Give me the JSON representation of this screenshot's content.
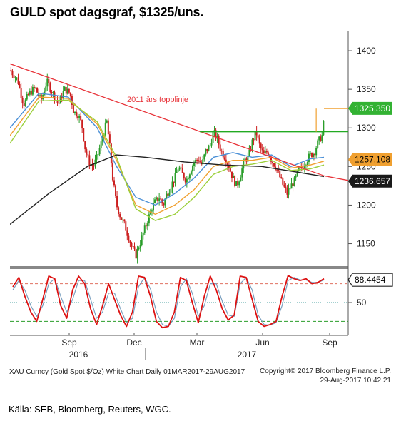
{
  "title": "GULD spot dagsgraf, $1325/uns.",
  "footer": {
    "left": "XAU Curncy (Gold Spot  $/Oz) White Chart  Daily 01MAR2017-29AUG2017",
    "right_1": "Copyright© 2017 Bloomberg Finance L.P.",
    "right_2": "29-Aug-2017 10:42:21"
  },
  "source": "Källa: SEB, Bloomberg, Reuters, WGC.",
  "annotation": "2011 års topplinje",
  "colors": {
    "candle_up": "#2a9d2a",
    "candle_down": "#cc1f1f",
    "trendline": "#e8343a",
    "resistance": "#22aa22",
    "ma_blue": "#4a8fd6",
    "ma_orange": "#f0a030",
    "ma_green": "#9bcf3a",
    "ma_200": "#222222",
    "stoch_k": "#dd1111",
    "stoch_d": "#7a9fbf"
  },
  "chart_data": [
    {
      "type": "candlestick",
      "title": "GULD spot dagsgraf, $1325/uns.",
      "y_ticks": [
        1150,
        1200,
        1250,
        1300,
        1350,
        1400
      ],
      "ylim": [
        1120,
        1425
      ],
      "x_ticks": [
        "Sep",
        "Dec",
        "Mar",
        "Jun",
        "Sep"
      ],
      "year_labels": [
        "2016",
        "2017"
      ],
      "value_tags": [
        {
          "label": "1325.350",
          "value": 1325.35,
          "fill": "#33b233",
          "text_color": "#ffffff"
        },
        {
          "label": "1257.108",
          "value": 1257.108,
          "fill": "#f0a030",
          "text_color": "#000000"
        },
        {
          "label": "1236.657",
          "value": 1236.657,
          "fill": "#1a1a1a",
          "text_color": "#ffffff"
        }
      ],
      "close_path": [
        [
          0,
          1375
        ],
        [
          8,
          1362
        ],
        [
          14,
          1330
        ],
        [
          20,
          1345
        ],
        [
          26,
          1352
        ],
        [
          32,
          1335
        ],
        [
          38,
          1360
        ],
        [
          44,
          1345
        ],
        [
          50,
          1330
        ],
        [
          56,
          1350
        ],
        [
          62,
          1345
        ],
        [
          66,
          1320
        ],
        [
          70,
          1318
        ],
        [
          74,
          1305
        ],
        [
          78,
          1270
        ],
        [
          82,
          1255
        ],
        [
          86,
          1250
        ],
        [
          90,
          1262
        ],
        [
          94,
          1280
        ],
        [
          98,
          1300
        ],
        [
          100,
          1308
        ],
        [
          103,
          1275
        ],
        [
          106,
          1235
        ],
        [
          110,
          1200
        ],
        [
          114,
          1185
        ],
        [
          118,
          1175
        ],
        [
          122,
          1160
        ],
        [
          126,
          1145
        ],
        [
          130,
          1135
        ],
        [
          134,
          1150
        ],
        [
          138,
          1165
        ],
        [
          142,
          1180
        ],
        [
          146,
          1195
        ],
        [
          150,
          1205
        ],
        [
          154,
          1210
        ],
        [
          158,
          1200
        ],
        [
          162,
          1215
        ],
        [
          166,
          1225
        ],
        [
          170,
          1235
        ],
        [
          174,
          1250
        ],
        [
          178,
          1240
        ],
        [
          182,
          1232
        ],
        [
          186,
          1245
        ],
        [
          190,
          1255
        ],
        [
          194,
          1260
        ],
        [
          198,
          1252
        ],
        [
          202,
          1270
        ],
        [
          206,
          1275
        ],
        [
          210,
          1295
        ],
        [
          214,
          1285
        ],
        [
          218,
          1270
        ],
        [
          222,
          1262
        ],
        [
          226,
          1250
        ],
        [
          230,
          1235
        ],
        [
          234,
          1225
        ],
        [
          238,
          1240
        ],
        [
          242,
          1258
        ],
        [
          246,
          1262
        ],
        [
          250,
          1282
        ],
        [
          254,
          1295
        ],
        [
          258,
          1275
        ],
        [
          262,
          1265
        ],
        [
          266,
          1270
        ],
        [
          270,
          1258
        ],
        [
          274,
          1250
        ],
        [
          278,
          1238
        ],
        [
          282,
          1225
        ],
        [
          286,
          1215
        ],
        [
          290,
          1225
        ],
        [
          294,
          1232
        ],
        [
          298,
          1245
        ],
        [
          302,
          1250
        ],
        [
          306,
          1258
        ],
        [
          310,
          1265
        ],
        [
          314,
          1268
        ],
        [
          318,
          1282
        ],
        [
          322,
          1290
        ],
        [
          324,
          1310
        ]
      ],
      "series": [
        {
          "name": "",
          "style": "ma_blue",
          "points": [
            [
              0,
              1300
            ],
            [
              30,
              1345
            ],
            [
              60,
              1340
            ],
            [
              90,
              1300
            ],
            [
              110,
              1250
            ],
            [
              130,
              1210
            ],
            [
              150,
              1200
            ],
            [
              170,
              1215
            ],
            [
              190,
              1235
            ],
            [
              210,
              1262
            ],
            [
              230,
              1268
            ],
            [
              250,
              1262
            ],
            [
              270,
              1265
            ],
            [
              290,
              1250
            ],
            [
              310,
              1260
            ],
            [
              324,
              1262
            ]
          ]
        },
        {
          "name": "",
          "style": "ma_orange",
          "points": [
            [
              0,
              1290
            ],
            [
              30,
              1340
            ],
            [
              60,
              1338
            ],
            [
              90,
              1305
            ],
            [
              110,
              1258
            ],
            [
              130,
              1200
            ],
            [
              150,
              1188
            ],
            [
              170,
              1200
            ],
            [
              190,
              1220
            ],
            [
              210,
              1250
            ],
            [
              230,
              1258
            ],
            [
              250,
              1258
            ],
            [
              270,
              1262
            ],
            [
              290,
              1248
            ],
            [
              310,
              1252
            ],
            [
              324,
              1257
            ]
          ]
        },
        {
          "name": "",
          "style": "ma_green",
          "points": [
            [
              0,
              1280
            ],
            [
              30,
              1335
            ],
            [
              60,
              1336
            ],
            [
              90,
              1308
            ],
            [
              110,
              1262
            ],
            [
              130,
              1195
            ],
            [
              150,
              1180
            ],
            [
              170,
              1188
            ],
            [
              190,
              1210
            ],
            [
              210,
              1240
            ],
            [
              230,
              1250
            ],
            [
              250,
              1253
            ],
            [
              270,
              1258
            ],
            [
              290,
              1245
            ],
            [
              310,
              1247
            ],
            [
              324,
              1252
            ]
          ]
        },
        {
          "name": "",
          "style": "ma_200",
          "points": [
            [
              0,
              1175
            ],
            [
              40,
              1215
            ],
            [
              80,
              1250
            ],
            [
              110,
              1265
            ],
            [
              140,
              1262
            ],
            [
              180,
              1256
            ],
            [
              220,
              1252
            ],
            [
              260,
              1250
            ],
            [
              300,
              1242
            ],
            [
              324,
              1237
            ]
          ]
        },
        {
          "name": "",
          "style": "trendline",
          "points": [
            [
              0,
              1383
            ],
            [
              324,
              1238
            ]
          ]
        },
        {
          "name": "",
          "style": "resistance",
          "points": [
            [
              196,
              1295
            ],
            [
              324,
              1295
            ]
          ]
        }
      ]
    },
    {
      "type": "line",
      "y_ticks": [
        50
      ],
      "ylim": [
        0,
        100
      ],
      "value_tags": [
        {
          "label": "88.4454",
          "value": 88.4454
        }
      ],
      "reference_lines": [
        80,
        50,
        20
      ],
      "series": [
        {
          "name": "",
          "style": "stoch_k",
          "values": [
            75,
            90,
            60,
            35,
            20,
            55,
            92,
            88,
            45,
            25,
            70,
            92,
            80,
            40,
            15,
            45,
            80,
            55,
            30,
            12,
            35,
            92,
            90,
            60,
            20,
            10,
            12,
            35,
            90,
            85,
            50,
            18,
            60,
            92,
            70,
            40,
            22,
            30,
            92,
            90,
            55,
            20,
            12,
            15,
            20,
            60,
            93,
            88,
            85,
            88,
            80,
            82,
            88
          ]
        },
        {
          "name": "",
          "style": "stoch_d",
          "values": [
            70,
            85,
            70,
            45,
            28,
            45,
            80,
            88,
            60,
            35,
            55,
            85,
            85,
            55,
            25,
            35,
            65,
            65,
            40,
            18,
            25,
            75,
            90,
            72,
            35,
            15,
            12,
            25,
            75,
            88,
            65,
            28,
            45,
            80,
            80,
            52,
            30,
            28,
            80,
            90,
            70,
            30,
            15,
            14,
            18,
            45,
            85,
            90,
            86,
            86,
            82,
            82,
            86
          ]
        }
      ]
    }
  ]
}
